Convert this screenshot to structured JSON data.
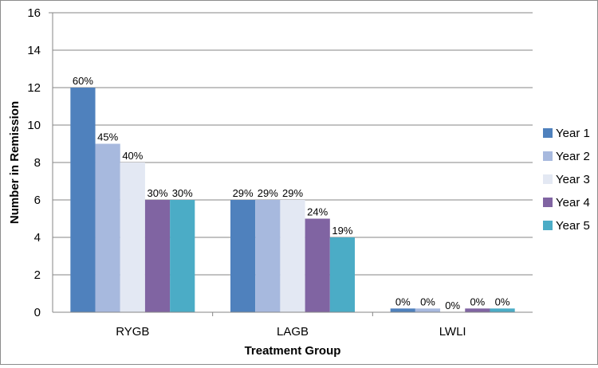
{
  "chart_data": {
    "type": "bar",
    "xlabel": "Treatment Group",
    "ylabel": "Number in Remission",
    "ylim": [
      0,
      16
    ],
    "yticks": [
      0,
      2,
      4,
      6,
      8,
      10,
      12,
      14,
      16
    ],
    "grid": true,
    "legend_position": "right",
    "categories": [
      "RYGB",
      "LAGB",
      "LWLI"
    ],
    "series": [
      {
        "name": "Year 1",
        "color": "#4F81BD",
        "values": [
          12,
          6,
          0.2
        ],
        "labels": [
          "60%",
          "29%",
          "0%"
        ]
      },
      {
        "name": "Year 2",
        "color": "#A7B9DE",
        "values": [
          9,
          6,
          0.2
        ],
        "labels": [
          "45%",
          "29%",
          "0%"
        ]
      },
      {
        "name": "Year 3",
        "color": "#E3E8F3",
        "values": [
          8,
          6,
          0
        ],
        "labels": [
          "40%",
          "29%",
          "0%"
        ]
      },
      {
        "name": "Year 4",
        "color": "#8064A2",
        "values": [
          6,
          5,
          0.2
        ],
        "labels": [
          "30%",
          "24%",
          "0%"
        ]
      },
      {
        "name": "Year 5",
        "color": "#4BACC6",
        "values": [
          6,
          4,
          0.2
        ],
        "labels": [
          "30%",
          "19%",
          "0%"
        ]
      }
    ]
  }
}
